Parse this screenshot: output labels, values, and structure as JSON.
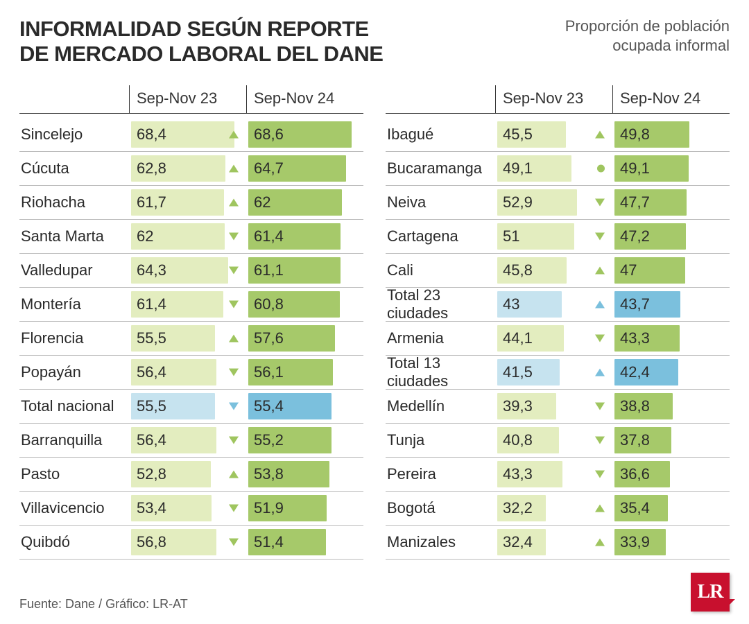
{
  "title_line1": "INFORMALIDAD SEGÚN REPORTE",
  "title_line2": "DE MERCADO LABORAL DEL DANE",
  "subtitle_line1": "Proporción de población",
  "subtitle_line2": "ocupada informal",
  "period1": "Sep-Nov 23",
  "period2": "Sep-Nov 24",
  "source": "Fuente: Dane / Gráfico: LR-AT",
  "logo": "LR",
  "scale_max": 75,
  "colors": {
    "bar_light": "#e3edbf",
    "bar_dark": "#a6c96a",
    "blue_light": "#c6e3ef",
    "blue_dark": "#7bc0dd",
    "trend_green": "#9fc55f",
    "trend_blue": "#7bc0dd"
  },
  "left": [
    {
      "label": "Sincelejo",
      "v1": "68,4",
      "n1": 68.4,
      "v2": "68,6",
      "n2": 68.6,
      "trend": "up",
      "total": false
    },
    {
      "label": "Cúcuta",
      "v1": "62,8",
      "n1": 62.8,
      "v2": "64,7",
      "n2": 64.7,
      "trend": "up",
      "total": false
    },
    {
      "label": "Riohacha",
      "v1": "61,7",
      "n1": 61.7,
      "v2": "62",
      "n2": 62,
      "trend": "up",
      "total": false
    },
    {
      "label": "Santa Marta",
      "v1": "62",
      "n1": 62,
      "v2": "61,4",
      "n2": 61.4,
      "trend": "down",
      "total": false
    },
    {
      "label": "Valledupar",
      "v1": "64,3",
      "n1": 64.3,
      "v2": "61,1",
      "n2": 61.1,
      "trend": "down",
      "total": false
    },
    {
      "label": "Montería",
      "v1": "61,4",
      "n1": 61.4,
      "v2": "60,8",
      "n2": 60.8,
      "trend": "down",
      "total": false
    },
    {
      "label": "Florencia",
      "v1": "55,5",
      "n1": 55.5,
      "v2": "57,6",
      "n2": 57.6,
      "trend": "up",
      "total": false
    },
    {
      "label": "Popayán",
      "v1": "56,4",
      "n1": 56.4,
      "v2": "56,1",
      "n2": 56.1,
      "trend": "down",
      "total": false
    },
    {
      "label": "Total nacional",
      "v1": "55,5",
      "n1": 55.5,
      "v2": "55,4",
      "n2": 55.4,
      "trend": "down",
      "total": true
    },
    {
      "label": "Barranquilla",
      "v1": "56,4",
      "n1": 56.4,
      "v2": "55,2",
      "n2": 55.2,
      "trend": "down",
      "total": false
    },
    {
      "label": "Pasto",
      "v1": "52,8",
      "n1": 52.8,
      "v2": "53,8",
      "n2": 53.8,
      "trend": "up",
      "total": false
    },
    {
      "label": "Villavicencio",
      "v1": "53,4",
      "n1": 53.4,
      "v2": "51,9",
      "n2": 51.9,
      "trend": "down",
      "total": false
    },
    {
      "label": "Quibdó",
      "v1": "56,8",
      "n1": 56.8,
      "v2": "51,4",
      "n2": 51.4,
      "trend": "down",
      "total": false
    }
  ],
  "right": [
    {
      "label": "Ibagué",
      "v1": "45,5",
      "n1": 45.5,
      "v2": "49,8",
      "n2": 49.8,
      "trend": "up",
      "total": false
    },
    {
      "label": "Bucaramanga",
      "v1": "49,1",
      "n1": 49.1,
      "v2": "49,1",
      "n2": 49.1,
      "trend": "same",
      "total": false
    },
    {
      "label": "Neiva",
      "v1": "52,9",
      "n1": 52.9,
      "v2": "47,7",
      "n2": 47.7,
      "trend": "down",
      "total": false
    },
    {
      "label": "Cartagena",
      "v1": "51",
      "n1": 51,
      "v2": "47,2",
      "n2": 47.2,
      "trend": "down",
      "total": false
    },
    {
      "label": "Cali",
      "v1": "45,8",
      "n1": 45.8,
      "v2": "47",
      "n2": 47,
      "trend": "up",
      "total": false
    },
    {
      "label": "Total 23 ciudades",
      "v1": "43",
      "n1": 43,
      "v2": "43,7",
      "n2": 43.7,
      "trend": "up",
      "total": true
    },
    {
      "label": "Armenia",
      "v1": "44,1",
      "n1": 44.1,
      "v2": "43,3",
      "n2": 43.3,
      "trend": "down",
      "total": false
    },
    {
      "label": "Total 13 ciudades",
      "v1": "41,5",
      "n1": 41.5,
      "v2": "42,4",
      "n2": 42.4,
      "trend": "up",
      "total": true
    },
    {
      "label": "Medellín",
      "v1": "39,3",
      "n1": 39.3,
      "v2": "38,8",
      "n2": 38.8,
      "trend": "down",
      "total": false
    },
    {
      "label": "Tunja",
      "v1": "40,8",
      "n1": 40.8,
      "v2": "37,8",
      "n2": 37.8,
      "trend": "down",
      "total": false
    },
    {
      "label": "Pereira",
      "v1": "43,3",
      "n1": 43.3,
      "v2": "36,6",
      "n2": 36.6,
      "trend": "down",
      "total": false
    },
    {
      "label": "Bogotá",
      "v1": "32,2",
      "n1": 32.2,
      "v2": "35,4",
      "n2": 35.4,
      "trend": "up",
      "total": false
    },
    {
      "label": "Manizales",
      "v1": "32,4",
      "n1": 32.4,
      "v2": "33,9",
      "n2": 33.9,
      "trend": "up",
      "total": false
    }
  ]
}
